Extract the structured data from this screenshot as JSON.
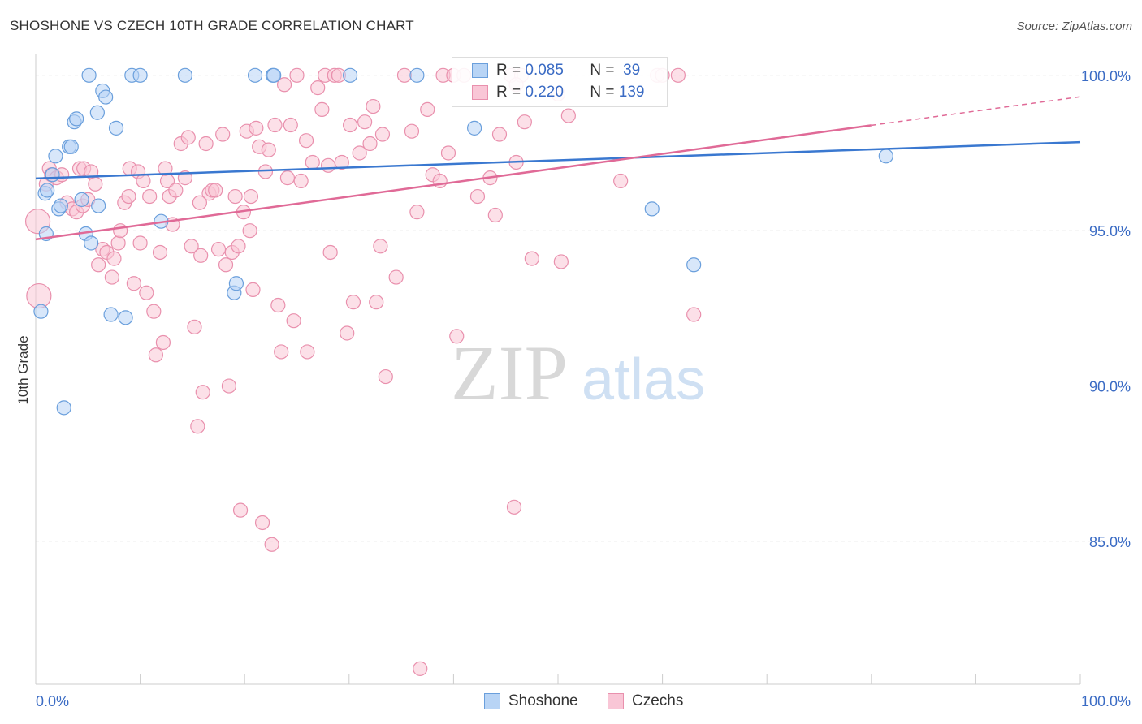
{
  "title": "SHOSHONE VS CZECH 10TH GRADE CORRELATION CHART",
  "source": "Source: ZipAtlas.com",
  "watermark": {
    "zip": "ZIP",
    "atlas": "atlas"
  },
  "legend": [
    {
      "r_label": "R =",
      "r_value": "0.085",
      "n_label": "N =",
      "n_value": "39"
    },
    {
      "r_label": "R =",
      "r_value": "0.220",
      "n_label": "N =",
      "n_value": "139"
    }
  ],
  "bottom_legend": [
    "Shoshone",
    "Czechs"
  ],
  "colors": {
    "shoshone_fill": "#b8d4f5",
    "shoshone_stroke": "#6a9fdc",
    "shoshone_line": "#3a78d0",
    "czech_fill": "#f9c6d6",
    "czech_stroke": "#e990ad",
    "czech_line": "#e06a97",
    "tick_label": "#3a6bc4",
    "grid": "#e6e6e6"
  },
  "chart_data": {
    "type": "scatter",
    "title": "SHOSHONE VS CZECH 10TH GRADE CORRELATION CHART",
    "xlabel": "",
    "ylabel": "10th Grade",
    "xlim": [
      0,
      100
    ],
    "ylim": [
      80.4,
      100.7
    ],
    "x_tick_labels": [
      "0.0%",
      "100.0%"
    ],
    "y_ticks": [
      85,
      90,
      95,
      100
    ],
    "y_tick_labels": [
      "85.0%",
      "90.0%",
      "95.0%",
      "100.0%"
    ],
    "grid": true,
    "series": [
      {
        "name": "Shoshone",
        "points": [
          [
            0.5,
            92.4
          ],
          [
            0.9,
            96.2
          ],
          [
            1.0,
            94.9
          ],
          [
            1.1,
            96.3
          ],
          [
            1.6,
            96.8
          ],
          [
            1.9,
            97.4
          ],
          [
            2.2,
            95.7
          ],
          [
            2.4,
            95.8
          ],
          [
            2.7,
            89.3
          ],
          [
            3.2,
            97.7
          ],
          [
            3.4,
            97.7
          ],
          [
            3.7,
            98.5
          ],
          [
            3.9,
            98.6
          ],
          [
            4.4,
            96.0
          ],
          [
            4.8,
            94.9
          ],
          [
            5.1,
            100.0
          ],
          [
            5.3,
            94.6
          ],
          [
            5.9,
            98.8
          ],
          [
            6.0,
            95.8
          ],
          [
            6.4,
            99.5
          ],
          [
            6.7,
            99.3
          ],
          [
            7.2,
            92.3
          ],
          [
            7.7,
            98.3
          ],
          [
            8.6,
            92.2
          ],
          [
            9.2,
            100.0
          ],
          [
            10.0,
            100.0
          ],
          [
            14.3,
            100.0
          ],
          [
            19.0,
            93.0
          ],
          [
            19.2,
            93.3
          ],
          [
            21.0,
            100.0
          ],
          [
            22.7,
            100.0
          ],
          [
            22.8,
            100.0
          ],
          [
            30.1,
            100.0
          ],
          [
            36.5,
            100.0
          ],
          [
            42.0,
            98.3
          ],
          [
            59.0,
            95.7
          ],
          [
            63.0,
            93.9
          ],
          [
            81.4,
            97.4
          ],
          [
            12.0,
            95.3
          ]
        ]
      },
      {
        "name": "Czechs",
        "points": [
          [
            0.2,
            95.3
          ],
          [
            0.3,
            92.9
          ],
          [
            1.0,
            96.5
          ],
          [
            1.3,
            97.0
          ],
          [
            1.5,
            96.8
          ],
          [
            2.0,
            96.7
          ],
          [
            2.5,
            96.8
          ],
          [
            3.0,
            95.9
          ],
          [
            3.5,
            95.7
          ],
          [
            3.9,
            95.6
          ],
          [
            4.2,
            97.0
          ],
          [
            4.5,
            95.8
          ],
          [
            4.6,
            97.0
          ],
          [
            5.0,
            96.0
          ],
          [
            5.3,
            96.9
          ],
          [
            5.7,
            96.5
          ],
          [
            6.0,
            93.9
          ],
          [
            6.4,
            94.4
          ],
          [
            6.8,
            94.3
          ],
          [
            7.3,
            93.5
          ],
          [
            7.5,
            94.1
          ],
          [
            7.9,
            94.6
          ],
          [
            8.1,
            95.0
          ],
          [
            8.5,
            95.9
          ],
          [
            8.9,
            96.1
          ],
          [
            9.0,
            97.0
          ],
          [
            9.4,
            93.3
          ],
          [
            9.8,
            96.9
          ],
          [
            10.3,
            96.6
          ],
          [
            10.6,
            93.0
          ],
          [
            10.9,
            96.1
          ],
          [
            11.3,
            92.4
          ],
          [
            11.5,
            91.0
          ],
          [
            11.9,
            94.3
          ],
          [
            12.2,
            91.4
          ],
          [
            12.6,
            96.6
          ],
          [
            12.8,
            96.1
          ],
          [
            13.1,
            95.2
          ],
          [
            13.4,
            96.3
          ],
          [
            13.9,
            97.8
          ],
          [
            14.3,
            96.7
          ],
          [
            14.6,
            98.0
          ],
          [
            14.9,
            94.5
          ],
          [
            15.2,
            91.9
          ],
          [
            15.5,
            88.7
          ],
          [
            15.8,
            94.2
          ],
          [
            16.0,
            89.8
          ],
          [
            16.3,
            97.8
          ],
          [
            16.6,
            96.2
          ],
          [
            16.9,
            96.3
          ],
          [
            17.2,
            96.3
          ],
          [
            17.5,
            94.4
          ],
          [
            17.9,
            98.1
          ],
          [
            18.2,
            93.9
          ],
          [
            18.5,
            90.0
          ],
          [
            18.8,
            94.3
          ],
          [
            19.1,
            96.1
          ],
          [
            19.4,
            94.5
          ],
          [
            19.6,
            86.0
          ],
          [
            19.9,
            95.6
          ],
          [
            20.2,
            98.2
          ],
          [
            20.5,
            95.0
          ],
          [
            20.8,
            93.1
          ],
          [
            21.1,
            98.3
          ],
          [
            21.4,
            97.7
          ],
          [
            21.7,
            85.6
          ],
          [
            22.0,
            96.9
          ],
          [
            22.3,
            97.6
          ],
          [
            22.6,
            84.9
          ],
          [
            22.9,
            98.4
          ],
          [
            23.2,
            92.6
          ],
          [
            23.5,
            91.1
          ],
          [
            23.8,
            99.7
          ],
          [
            24.1,
            96.7
          ],
          [
            24.4,
            98.4
          ],
          [
            24.7,
            92.1
          ],
          [
            25.0,
            100.0
          ],
          [
            25.4,
            96.6
          ],
          [
            26.0,
            91.1
          ],
          [
            26.5,
            97.2
          ],
          [
            27.0,
            99.6
          ],
          [
            27.4,
            98.9
          ],
          [
            27.7,
            100.0
          ],
          [
            28.0,
            97.1
          ],
          [
            28.2,
            94.3
          ],
          [
            28.6,
            100.0
          ],
          [
            29.0,
            100.0
          ],
          [
            29.3,
            97.2
          ],
          [
            29.8,
            91.7
          ],
          [
            30.1,
            98.4
          ],
          [
            30.4,
            92.7
          ],
          [
            31.0,
            97.5
          ],
          [
            31.5,
            98.5
          ],
          [
            32.3,
            99.0
          ],
          [
            32.6,
            92.7
          ],
          [
            33.0,
            94.5
          ],
          [
            33.2,
            98.1
          ],
          [
            33.5,
            90.3
          ],
          [
            34.5,
            93.5
          ],
          [
            35.3,
            100.0
          ],
          [
            36.0,
            98.2
          ],
          [
            36.5,
            95.6
          ],
          [
            36.8,
            80.9
          ],
          [
            37.5,
            98.9
          ],
          [
            38.0,
            96.8
          ],
          [
            38.7,
            96.6
          ],
          [
            39.0,
            100.0
          ],
          [
            39.5,
            97.5
          ],
          [
            40.0,
            100.0
          ],
          [
            40.3,
            91.6
          ],
          [
            41.0,
            100.0
          ],
          [
            42.3,
            96.1
          ],
          [
            43.5,
            96.7
          ],
          [
            44.0,
            95.5
          ],
          [
            44.4,
            98.1
          ],
          [
            45.5,
            100.0
          ],
          [
            45.8,
            86.1
          ],
          [
            46.0,
            97.2
          ],
          [
            46.5,
            100.0
          ],
          [
            46.8,
            98.5
          ],
          [
            47.5,
            94.1
          ],
          [
            50.0,
            99.4
          ],
          [
            50.3,
            94.0
          ],
          [
            56.0,
            96.6
          ],
          [
            59.5,
            100.0
          ],
          [
            60.0,
            100.0
          ],
          [
            61.5,
            100.0
          ],
          [
            20.6,
            96.1
          ],
          [
            12.4,
            97.0
          ],
          [
            15.7,
            95.9
          ],
          [
            32.0,
            97.8
          ],
          [
            51.0,
            98.7
          ],
          [
            46.0,
            99.7
          ],
          [
            10.0,
            94.6
          ],
          [
            25.9,
            97.9
          ],
          [
            63.0,
            92.3
          ]
        ]
      }
    ],
    "trend_lines": [
      {
        "name": "Shoshone",
        "x": [
          0,
          100
        ],
        "y": [
          96.68,
          97.85
        ]
      },
      {
        "name": "Czechs",
        "x": [
          0,
          80,
          100
        ],
        "y": [
          94.72,
          98.39,
          99.31
        ]
      }
    ]
  }
}
